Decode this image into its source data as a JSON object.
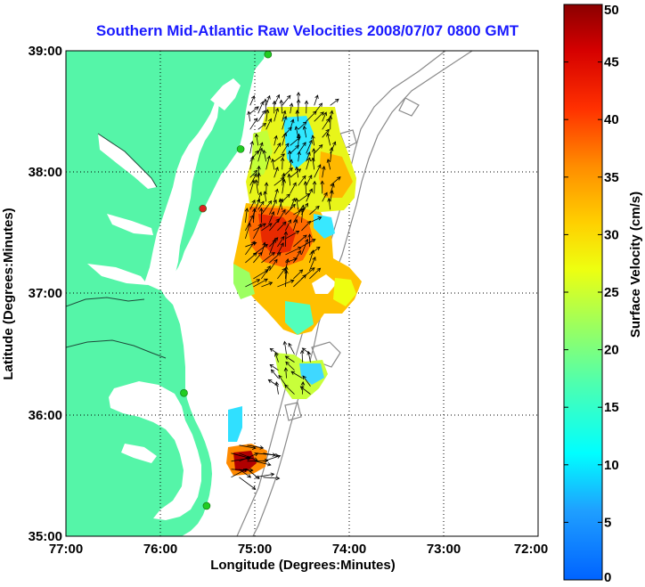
{
  "figure": {
    "title": "Southern Mid-Atlantic Raw Velocities 2008/07/07 0800 GMT",
    "xlabel": "Longitude (Degrees:Minutes)",
    "ylabel": "Latitude (Degrees:Minutes)",
    "x_ticks": [
      "77:00",
      "76:00",
      "75:00",
      "74:00",
      "73:00",
      "72:00"
    ],
    "y_ticks": [
      "39:00",
      "38:00",
      "37:00",
      "36:00",
      "35:00"
    ]
  },
  "colorbar": {
    "label": "Surface Velocity (cm/s)",
    "ticks": [
      "50",
      "45",
      "40",
      "35",
      "30",
      "25",
      "20",
      "15",
      "10",
      "5",
      "0"
    ],
    "min": 0,
    "max": 50
  },
  "colors": {
    "land": "#55f5a8",
    "title": "#1a1aff",
    "station_green": "#22cc22",
    "station_red": "#dd2222",
    "bathymetry": "#8a8a8a"
  },
  "map_extent": {
    "lon": [
      -77,
      -72
    ],
    "lat": [
      35,
      39
    ]
  },
  "stations": [
    {
      "lon": -74.86,
      "lat": 38.97,
      "status": "green"
    },
    {
      "lon": -75.15,
      "lat": 38.19,
      "status": "green"
    },
    {
      "lon": -75.55,
      "lat": 37.7,
      "status": "red"
    },
    {
      "lon": -75.75,
      "lat": 36.18,
      "status": "green"
    },
    {
      "lon": -75.51,
      "lat": 35.25,
      "status": "green"
    }
  ],
  "velocity_fields": [
    {
      "region": "delmarva-offshore",
      "lon": [
        -75.05,
        -74.15
      ],
      "lat": [
        37.65,
        38.55
      ],
      "speed_cm_s": 24,
      "dir_deg": 20
    },
    {
      "region": "mouth-of-bay",
      "lon": [
        -75.1,
        -74.4
      ],
      "lat": [
        37.0,
        37.65
      ],
      "speed_cm_s": 33,
      "dir_deg": 35
    },
    {
      "region": "north-carolina-shelf",
      "lon": [
        -74.75,
        -74.35
      ],
      "lat": [
        36.15,
        36.5
      ],
      "speed_cm_s": 22,
      "dir_deg": 330
    },
    {
      "region": "cape-hatteras",
      "lon": [
        -75.25,
        -74.85
      ],
      "lat": [
        35.45,
        35.75
      ],
      "speed_cm_s": 45,
      "dir_deg": 95
    }
  ]
}
